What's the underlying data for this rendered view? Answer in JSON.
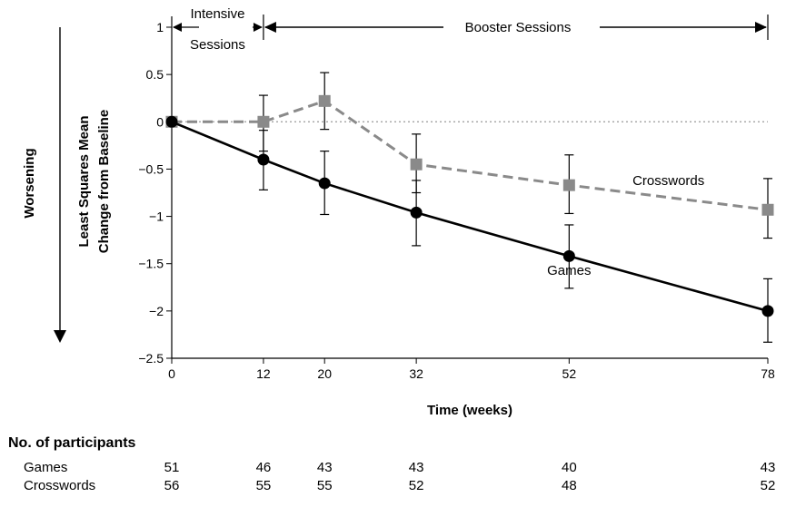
{
  "chart_data": {
    "type": "line",
    "x": [
      0,
      12,
      20,
      32,
      52,
      78
    ],
    "xlabel": "Time (weeks)",
    "ylabel_lines": [
      "Least Squares Mean",
      "Change from Baseline"
    ],
    "side_label": "Worsening",
    "xlim": [
      0,
      78
    ],
    "ylim": [
      -2.5,
      1
    ],
    "y_ticks": [
      1,
      0.5,
      0,
      -0.5,
      -1,
      -1.5,
      -2,
      -2.5
    ],
    "y_tick_labels": [
      "1",
      "0.5",
      "0",
      "−0.5",
      "−1",
      "−1.5",
      "−2",
      "−2.5"
    ],
    "x_tick_labels": [
      "0",
      "12",
      "20",
      "32",
      "52",
      "78"
    ],
    "series": [
      {
        "name": "Games",
        "marker": "circle",
        "line": "solid",
        "color": "#000000",
        "values": [
          0,
          -0.4,
          -0.65,
          -0.96,
          -1.42,
          -2.0
        ],
        "error_low": [
          null,
          -0.72,
          -0.98,
          -1.31,
          -1.76,
          -2.33
        ],
        "error_high": [
          null,
          -0.09,
          -0.31,
          -0.62,
          -1.09,
          -1.66
        ],
        "label_at": [
          52,
          -1.57
        ]
      },
      {
        "name": "Crosswords",
        "marker": "square",
        "line": "dashed",
        "color": "#8a8a8a",
        "values": [
          0,
          0,
          0.22,
          -0.45,
          -0.67,
          -0.93
        ],
        "error_low": [
          null,
          -0.31,
          -0.08,
          -0.75,
          -0.97,
          -1.23
        ],
        "error_high": [
          null,
          0.28,
          0.52,
          -0.13,
          -0.35,
          -0.6
        ],
        "label_at": [
          65,
          -0.62
        ]
      }
    ],
    "reference_line": 0,
    "grid": false,
    "phases": [
      {
        "label_lines": [
          "Intensive",
          "Sessions"
        ],
        "from": 0,
        "to": 12
      },
      {
        "label_lines": [
          "Booster Sessions"
        ],
        "from": 12,
        "to": 78
      }
    ]
  },
  "participants": {
    "title": "No. of participants",
    "rows": [
      {
        "label": "Games",
        "counts": [
          "51",
          "46",
          "43",
          "43",
          "40",
          "43"
        ]
      },
      {
        "label": "Crosswords",
        "counts": [
          "56",
          "55",
          "55",
          "52",
          "48",
          "52"
        ]
      }
    ]
  }
}
